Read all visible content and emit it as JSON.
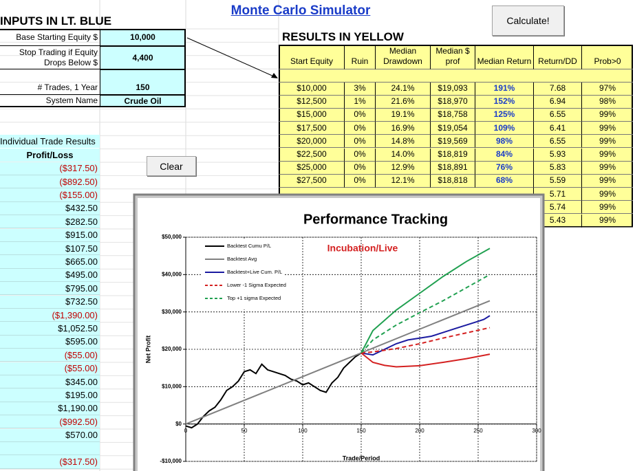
{
  "title": "Monte Carlo Simulator",
  "inputs": {
    "header": "INPUTS IN LT. BLUE",
    "rows": [
      {
        "label": "Base Starting Equity $",
        "value": "10,000"
      },
      {
        "label": "Stop Trading if Equity Drops Below $",
        "value": "4,400"
      },
      {
        "label": "# Trades, 1 Year",
        "value": "150"
      },
      {
        "label": "System Name",
        "value": "Crude Oil"
      }
    ]
  },
  "buttons": {
    "calculate": "Calculate!",
    "clear": "Clear"
  },
  "results": {
    "header": "RESULTS IN YELLOW",
    "columns": [
      "Start Equity",
      "Ruin",
      "Median Drawdown",
      "Median $ prof",
      "Median Return",
      "Return/DD",
      "Prob>0"
    ],
    "rows": [
      [
        "$10,000",
        "3%",
        "24.1%",
        "$19,093",
        "191%",
        "7.68",
        "97%"
      ],
      [
        "$12,500",
        "1%",
        "21.6%",
        "$18,970",
        "152%",
        "6.94",
        "98%"
      ],
      [
        "$15,000",
        "0%",
        "19.1%",
        "$18,758",
        "125%",
        "6.55",
        "99%"
      ],
      [
        "$17,500",
        "0%",
        "16.9%",
        "$19,054",
        "109%",
        "6.41",
        "99%"
      ],
      [
        "$20,000",
        "0%",
        "14.8%",
        "$19,569",
        "98%",
        "6.55",
        "99%"
      ],
      [
        "$22,500",
        "0%",
        "14.0%",
        "$18,819",
        "84%",
        "5.93",
        "99%"
      ],
      [
        "$25,000",
        "0%",
        "12.9%",
        "$18,891",
        "76%",
        "5.83",
        "99%"
      ],
      [
        "$27,500",
        "0%",
        "12.1%",
        "$18,818",
        "68%",
        "5.59",
        "99%"
      ],
      [
        null,
        null,
        null,
        null,
        null,
        "5.71",
        "99%"
      ],
      [
        null,
        null,
        null,
        null,
        null,
        "5.74",
        "99%"
      ],
      [
        null,
        null,
        null,
        null,
        null,
        "5.43",
        "99%"
      ]
    ]
  },
  "trades": {
    "header": "Individual Trade Results",
    "column": "Profit/Loss",
    "values": [
      "($317.50)",
      "($892.50)",
      "($155.00)",
      "$432.50",
      "$282.50",
      "$915.00",
      "$107.50",
      "$665.00",
      "$495.00",
      "$795.00",
      "$732.50",
      "($1,390.00)",
      "$1,052.50",
      "$595.00",
      "($55.00)",
      "($55.00)",
      "$345.00",
      "$195.00",
      "$1,190.00",
      "($992.50)",
      "$570.00",
      null,
      "($317.50)"
    ]
  },
  "chart_data": {
    "type": "line",
    "title": "Performance Tracking",
    "annotation": "Incubation/Live",
    "xlabel": "Trade/Period",
    "ylabel": "Net Profit",
    "xlim": [
      0,
      300
    ],
    "xticks": [
      0,
      50,
      100,
      150,
      200,
      250,
      300
    ],
    "ylim": [
      -10000,
      50000
    ],
    "yticks": [
      {
        "value": -10000,
        "label": "-$10,000"
      },
      {
        "value": 0,
        "label": "$0"
      },
      {
        "value": 10000,
        "label": "$10,000"
      },
      {
        "value": 20000,
        "label": "$20,000"
      },
      {
        "value": 30000,
        "label": "$30,000"
      },
      {
        "value": 40000,
        "label": "$40,000"
      },
      {
        "value": 50000,
        "label": "$50,000"
      }
    ],
    "grid": true,
    "legend": "upper left",
    "series": [
      {
        "name": "Backtest Cumu P/L",
        "color": "#000000",
        "linestyle": "solid",
        "x": [
          0,
          5,
          10,
          15,
          20,
          25,
          30,
          35,
          40,
          45,
          50,
          55,
          60,
          65,
          70,
          75,
          80,
          85,
          90,
          95,
          100,
          105,
          110,
          115,
          120,
          125,
          130,
          135,
          140,
          145,
          150
        ],
        "values": [
          -500,
          -1000,
          0,
          2000,
          3500,
          4500,
          6500,
          9000,
          10000,
          11500,
          14000,
          14500,
          13500,
          16000,
          14500,
          14000,
          13500,
          13000,
          12000,
          11500,
          10500,
          11000,
          10000,
          9000,
          8500,
          11000,
          12500,
          15000,
          16500,
          18000,
          19000
        ]
      },
      {
        "name": "Backtest Avg",
        "color": "#808080",
        "linestyle": "solid",
        "x": [
          0,
          260
        ],
        "values": [
          0,
          33000
        ]
      },
      {
        "name": "Backtest+Live Cum. P/L",
        "color": "#1a1aa0",
        "linestyle": "solid",
        "x": [
          150,
          160,
          170,
          180,
          190,
          200,
          210,
          220,
          230,
          240,
          250,
          255,
          260
        ],
        "values": [
          19000,
          18500,
          20000,
          21500,
          22500,
          23000,
          23500,
          24500,
          25500,
          26500,
          27500,
          28000,
          29000
        ]
      },
      {
        "name": "Lower -1 Sigma Expected",
        "color": "#d42020",
        "linestyle": "dashed",
        "x": [
          150,
          160,
          180,
          200,
          220,
          240,
          260
        ],
        "values": [
          19000,
          19300,
          20200,
          21500,
          23000,
          24400,
          25800
        ]
      },
      {
        "name": "Top +1 sigma Expected",
        "color": "#20a050",
        "linestyle": "dashed",
        "x": [
          150,
          160,
          180,
          200,
          220,
          240,
          260
        ],
        "values": [
          19000,
          22500,
          26500,
          29800,
          33000,
          36500,
          40000
        ]
      },
      {
        "color": "#20a050",
        "linestyle": "solid",
        "x": [
          150,
          160,
          180,
          200,
          220,
          240,
          260
        ],
        "values": [
          19000,
          25000,
          30500,
          35000,
          39500,
          43500,
          47000
        ]
      },
      {
        "color": "#d42020",
        "linestyle": "solid",
        "x": [
          150,
          160,
          170,
          180,
          200,
          220,
          240,
          260
        ],
        "values": [
          19000,
          16500,
          15700,
          15300,
          15600,
          16500,
          17500,
          18700
        ]
      }
    ]
  }
}
